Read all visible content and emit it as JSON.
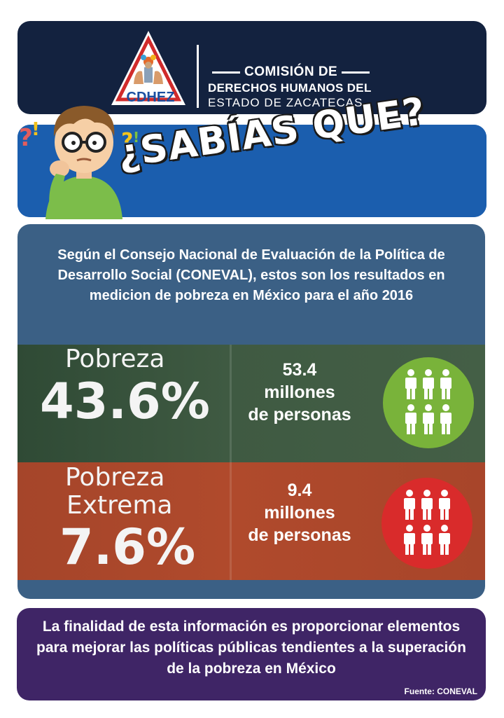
{
  "header": {
    "logo_text": "CDHEZ",
    "org_line1": "COMISIÓN DE",
    "org_line2": "DERECHOS HUMANOS DEL",
    "org_line3": "ESTADO DE ZACATECAS"
  },
  "banner": {
    "title": "¿SABÍAS QUE?"
  },
  "intro": "Según el Consejo Nacional de Evaluación de la Política de Desarrollo Social (CONEVAL), estos son los resultados en medicion de pobreza en México para el año 2016",
  "stats": [
    {
      "label": "Pobreza",
      "percent": "43.6%",
      "count_number": "53.4",
      "count_line2": "millones",
      "count_line3": "de personas",
      "circle_color": "#79b33a"
    },
    {
      "label_line1": "Pobreza",
      "label_line2": "Extrema",
      "percent": "7.6%",
      "count_number": "9.4",
      "count_line2": "millones",
      "count_line3": "de personas",
      "circle_color": "#d92b2b"
    }
  ],
  "closing": "La finalidad de esta información es proporcionar elementos para mejorar las políticas públicas tendientes a la superación de la pobreza en México",
  "source": "Fuente: CONEVAL",
  "colors": {
    "header_bg": "#13223f",
    "banner_bg": "#1b5eae",
    "main_bg": "#3b6085",
    "footer_bg": "#3f2566"
  }
}
